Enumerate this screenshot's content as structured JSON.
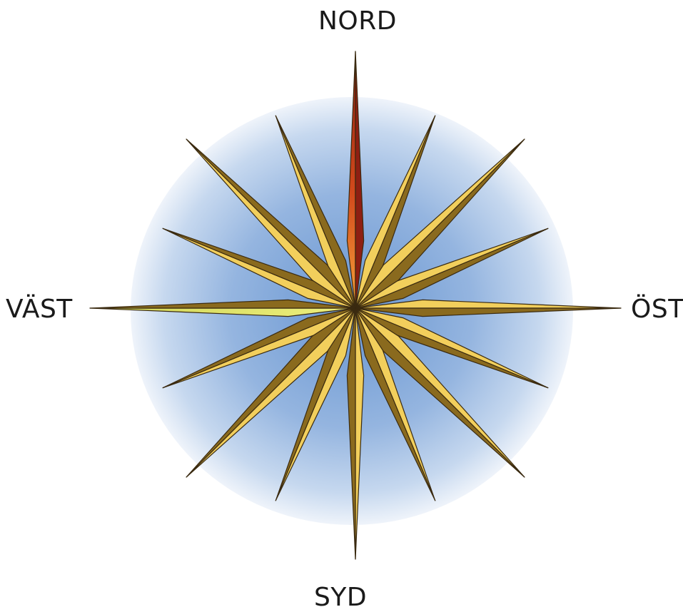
{
  "directions": {
    "north": "NORD",
    "south": "SYD",
    "west": "VÄST",
    "east": "ÖST"
  },
  "colors": {
    "background_disc": "#a9c4e6",
    "star_light": "#f2cf5c",
    "star_dark": "#8a6a1e",
    "north_light": "#f08a2a",
    "north_dark": "#8e1f12",
    "west_light": "#dfe06a",
    "outline": "#3a2a10"
  }
}
